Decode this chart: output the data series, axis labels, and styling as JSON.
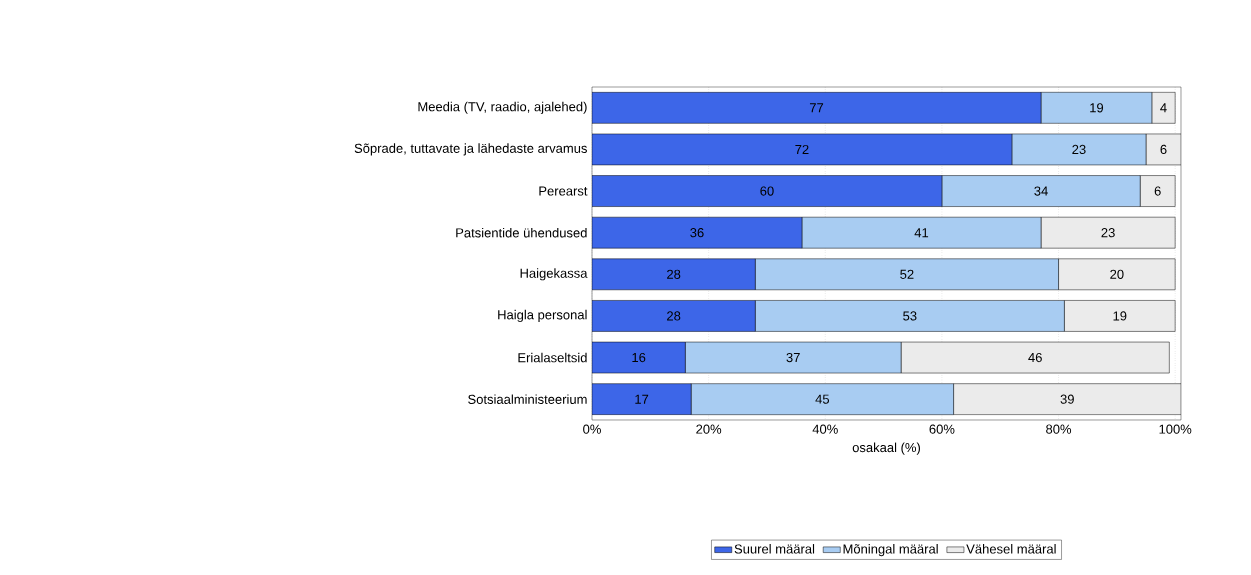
{
  "chart_data": {
    "type": "bar",
    "orientation": "horizontal",
    "stacked": true,
    "xlabel": "osakaal (%)",
    "categories": [
      "Meedia (TV, raadio, ajalehed)",
      "Sõprade, tuttavate ja lähedaste arvamus",
      "Perearst",
      "Patsientide ühendused",
      "Haigekassa",
      "Haigla personal",
      "Erialaseltsid",
      "Sotsiaalministeerium"
    ],
    "series": [
      {
        "name": "Suurel määral",
        "color": "#3d66e8",
        "values": [
          77,
          72,
          60,
          36,
          28,
          28,
          16,
          17
        ]
      },
      {
        "name": "Mõningal määral",
        "color": "#a8ccf2",
        "values": [
          19,
          23,
          34,
          41,
          52,
          53,
          37,
          45
        ]
      },
      {
        "name": "Vähesel määral",
        "color": "#ebebeb",
        "values": [
          4,
          6,
          6,
          23,
          20,
          19,
          46,
          39
        ]
      }
    ],
    "xlim": [
      0,
      101
    ],
    "xticks": [
      {
        "value": 0,
        "label": "0%"
      },
      {
        "value": 20,
        "label": "20%"
      },
      {
        "value": 40,
        "label": "40%"
      },
      {
        "value": 60,
        "label": "60%"
      },
      {
        "value": 80,
        "label": "80%"
      },
      {
        "value": 100,
        "label": "100%"
      }
    ],
    "grid": "x",
    "data_labels": true,
    "legend": "bottom"
  }
}
